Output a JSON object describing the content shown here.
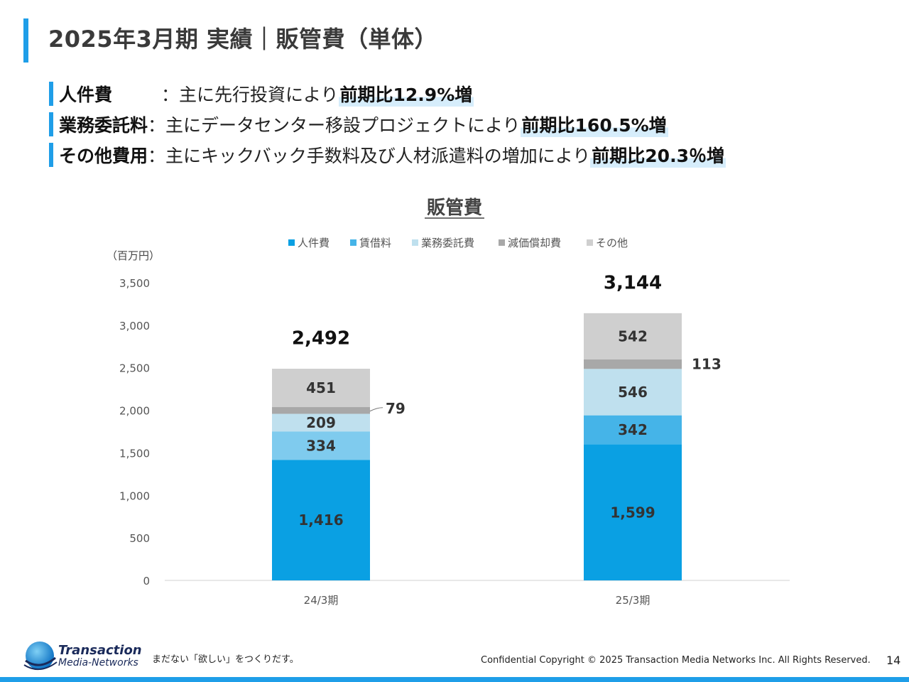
{
  "header": {
    "title": "2025年3月期 実績｜販管費（単体）"
  },
  "bullets": [
    {
      "label": "人件費",
      "text": "：主に先行投資により",
      "emph": "前期比12.9%増"
    },
    {
      "label": "業務委託料",
      "text": "：主にデータセンター移設プロジェクトにより",
      "emph": "前期比160.5%増"
    },
    {
      "label": "その他費用",
      "text": "：主にキックバック手数料及び人材派遣料の増加により",
      "emph": "前期比20.3％増"
    }
  ],
  "colors": {
    "accent": "#1f9ee8",
    "s1": "#0aa0e3",
    "s2": "#45b4e8",
    "s2_alt": "#7fcbee",
    "s3": "#bfe0ee",
    "s4": "#a8a8a8",
    "s5": "#cfcfcf"
  },
  "chart_data": {
    "type": "bar",
    "stacked": true,
    "title": "販管費",
    "ylabel": "（百万円）",
    "ylim": [
      0,
      3500
    ],
    "yticks": [
      0,
      500,
      1000,
      1500,
      2000,
      2500,
      3000,
      3500
    ],
    "ytick_labels": [
      "0",
      "500",
      "1,000",
      "1,500",
      "2,000",
      "2,500",
      "3,000",
      "3,500"
    ],
    "categories": [
      "24/3期",
      "25/3期"
    ],
    "grid": false,
    "legend": "top",
    "series": [
      {
        "name": "人件費",
        "values": [
          1416,
          1599
        ],
        "labels": [
          "1,416",
          "1,599"
        ]
      },
      {
        "name": "賃借料",
        "values": [
          334,
          342
        ],
        "labels": [
          "334",
          "342"
        ]
      },
      {
        "name": "業務委託費",
        "values": [
          209,
          546
        ],
        "labels": [
          "209",
          "546"
        ]
      },
      {
        "name": "減価償却費",
        "values": [
          79,
          113
        ],
        "labels": [
          "79",
          "113"
        ]
      },
      {
        "name": "その他",
        "values": [
          451,
          542
        ],
        "labels": [
          "451",
          "542"
        ]
      }
    ],
    "totals": [
      2492,
      3144
    ],
    "total_labels": [
      "2,492",
      "3,144"
    ]
  },
  "footer": {
    "logo_line1": "Transaction",
    "logo_line2": "Media-Networks",
    "slogan": "まだない「欲しい」をつくりだす。",
    "copyright": "Confidential  Copyright © 2025 Transaction Media Networks Inc. All Rights Reserved.",
    "page_number": "14"
  }
}
